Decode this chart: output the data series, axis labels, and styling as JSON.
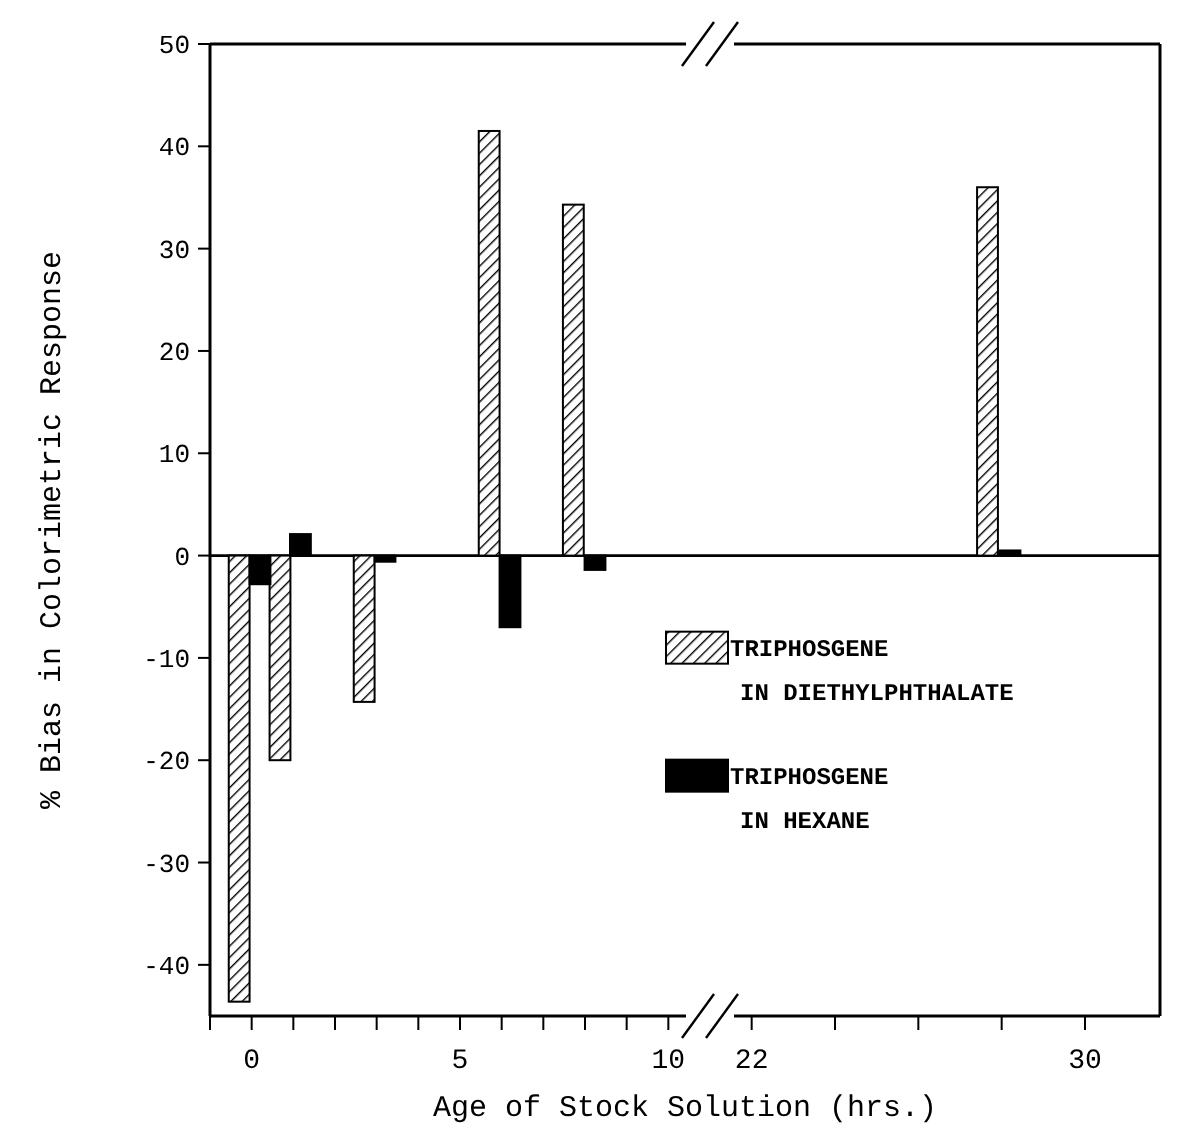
{
  "chart_data": [
    {
      "type": "bar",
      "ylabel": "% Bias in Colorimetric Response",
      "xlim": [
        -1,
        11
      ],
      "ylim": [
        -45,
        50
      ],
      "xticks": [
        {
          "value": -1,
          "label": null
        },
        0,
        {
          "value": 1,
          "label": null
        },
        {
          "value": 2,
          "label": null
        },
        {
          "value": 3,
          "label": null
        },
        {
          "value": 4,
          "label": null
        },
        5,
        {
          "value": 6,
          "label": null
        },
        {
          "value": 7,
          "label": null
        },
        {
          "value": 8,
          "label": null
        },
        {
          "value": 9,
          "label": null
        },
        10
      ],
      "yticks": [
        -40,
        -30,
        -20,
        -10,
        0,
        10,
        20,
        30,
        40,
        50
      ],
      "series": [
        {
          "color": "#000000",
          "x": [
            -0.3,
            0.68,
            2.7,
            5.7,
            7.72
          ],
          "values": [
            -43.6,
            -20,
            -14.3,
            41.5,
            34.3
          ]
        },
        {
          "color": "#000000",
          "x": [
            0.2,
            1.17,
            3.2,
            6.2,
            8.24
          ],
          "values": [
            -2.8,
            2.1,
            -0.6,
            -7,
            -1.4
          ]
        }
      ]
    },
    {
      "type": "bar",
      "xlabel": "Age of Stock Solution (hrs.)",
      "xlim": [
        21,
        31.8
      ],
      "ylim": [
        -45,
        50
      ],
      "tick_labels": "x",
      "xticks": [
        22,
        {
          "value": 24,
          "label": null
        },
        {
          "value": 26,
          "label": null
        },
        {
          "value": 28,
          "label": null
        },
        30
      ],
      "legend": "left",
      "series": [
        {
          "name": "TRIPHOSGENE IN DIETHYLPHTHALATE",
          "color": "#000000",
          "x": [
            27.66
          ],
          "values": [
            36
          ]
        },
        {
          "name": "TRIPHOSGENE IN HEXANE",
          "color": "#000000",
          "x": [
            28.2
          ],
          "values": [
            0.5
          ]
        }
      ]
    }
  ]
}
